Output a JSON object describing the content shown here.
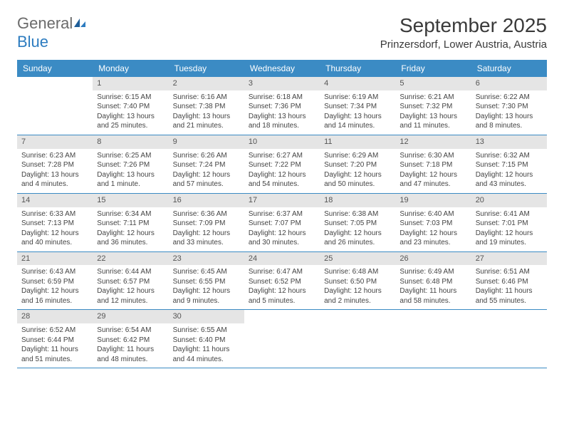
{
  "logo": {
    "word1": "General",
    "word2": "Blue"
  },
  "title": "September 2025",
  "location": "Prinzersdorf, Lower Austria, Austria",
  "colors": {
    "header_bg": "#3b8bc4",
    "header_text": "#ffffff",
    "daynum_bg": "#e5e5e5",
    "border": "#3b8bc4",
    "body_text": "#444444",
    "logo_gray": "#6b6b6b",
    "logo_blue": "#2d7cc0"
  },
  "day_headers": [
    "Sunday",
    "Monday",
    "Tuesday",
    "Wednesday",
    "Thursday",
    "Friday",
    "Saturday"
  ],
  "weeks": [
    [
      {
        "num": "",
        "sunrise": "",
        "sunset": "",
        "daylight1": "",
        "daylight2": ""
      },
      {
        "num": "1",
        "sunrise": "Sunrise: 6:15 AM",
        "sunset": "Sunset: 7:40 PM",
        "daylight1": "Daylight: 13 hours",
        "daylight2": "and 25 minutes."
      },
      {
        "num": "2",
        "sunrise": "Sunrise: 6:16 AM",
        "sunset": "Sunset: 7:38 PM",
        "daylight1": "Daylight: 13 hours",
        "daylight2": "and 21 minutes."
      },
      {
        "num": "3",
        "sunrise": "Sunrise: 6:18 AM",
        "sunset": "Sunset: 7:36 PM",
        "daylight1": "Daylight: 13 hours",
        "daylight2": "and 18 minutes."
      },
      {
        "num": "4",
        "sunrise": "Sunrise: 6:19 AM",
        "sunset": "Sunset: 7:34 PM",
        "daylight1": "Daylight: 13 hours",
        "daylight2": "and 14 minutes."
      },
      {
        "num": "5",
        "sunrise": "Sunrise: 6:21 AM",
        "sunset": "Sunset: 7:32 PM",
        "daylight1": "Daylight: 13 hours",
        "daylight2": "and 11 minutes."
      },
      {
        "num": "6",
        "sunrise": "Sunrise: 6:22 AM",
        "sunset": "Sunset: 7:30 PM",
        "daylight1": "Daylight: 13 hours",
        "daylight2": "and 8 minutes."
      }
    ],
    [
      {
        "num": "7",
        "sunrise": "Sunrise: 6:23 AM",
        "sunset": "Sunset: 7:28 PM",
        "daylight1": "Daylight: 13 hours",
        "daylight2": "and 4 minutes."
      },
      {
        "num": "8",
        "sunrise": "Sunrise: 6:25 AM",
        "sunset": "Sunset: 7:26 PM",
        "daylight1": "Daylight: 13 hours",
        "daylight2": "and 1 minute."
      },
      {
        "num": "9",
        "sunrise": "Sunrise: 6:26 AM",
        "sunset": "Sunset: 7:24 PM",
        "daylight1": "Daylight: 12 hours",
        "daylight2": "and 57 minutes."
      },
      {
        "num": "10",
        "sunrise": "Sunrise: 6:27 AM",
        "sunset": "Sunset: 7:22 PM",
        "daylight1": "Daylight: 12 hours",
        "daylight2": "and 54 minutes."
      },
      {
        "num": "11",
        "sunrise": "Sunrise: 6:29 AM",
        "sunset": "Sunset: 7:20 PM",
        "daylight1": "Daylight: 12 hours",
        "daylight2": "and 50 minutes."
      },
      {
        "num": "12",
        "sunrise": "Sunrise: 6:30 AM",
        "sunset": "Sunset: 7:18 PM",
        "daylight1": "Daylight: 12 hours",
        "daylight2": "and 47 minutes."
      },
      {
        "num": "13",
        "sunrise": "Sunrise: 6:32 AM",
        "sunset": "Sunset: 7:15 PM",
        "daylight1": "Daylight: 12 hours",
        "daylight2": "and 43 minutes."
      }
    ],
    [
      {
        "num": "14",
        "sunrise": "Sunrise: 6:33 AM",
        "sunset": "Sunset: 7:13 PM",
        "daylight1": "Daylight: 12 hours",
        "daylight2": "and 40 minutes."
      },
      {
        "num": "15",
        "sunrise": "Sunrise: 6:34 AM",
        "sunset": "Sunset: 7:11 PM",
        "daylight1": "Daylight: 12 hours",
        "daylight2": "and 36 minutes."
      },
      {
        "num": "16",
        "sunrise": "Sunrise: 6:36 AM",
        "sunset": "Sunset: 7:09 PM",
        "daylight1": "Daylight: 12 hours",
        "daylight2": "and 33 minutes."
      },
      {
        "num": "17",
        "sunrise": "Sunrise: 6:37 AM",
        "sunset": "Sunset: 7:07 PM",
        "daylight1": "Daylight: 12 hours",
        "daylight2": "and 30 minutes."
      },
      {
        "num": "18",
        "sunrise": "Sunrise: 6:38 AM",
        "sunset": "Sunset: 7:05 PM",
        "daylight1": "Daylight: 12 hours",
        "daylight2": "and 26 minutes."
      },
      {
        "num": "19",
        "sunrise": "Sunrise: 6:40 AM",
        "sunset": "Sunset: 7:03 PM",
        "daylight1": "Daylight: 12 hours",
        "daylight2": "and 23 minutes."
      },
      {
        "num": "20",
        "sunrise": "Sunrise: 6:41 AM",
        "sunset": "Sunset: 7:01 PM",
        "daylight1": "Daylight: 12 hours",
        "daylight2": "and 19 minutes."
      }
    ],
    [
      {
        "num": "21",
        "sunrise": "Sunrise: 6:43 AM",
        "sunset": "Sunset: 6:59 PM",
        "daylight1": "Daylight: 12 hours",
        "daylight2": "and 16 minutes."
      },
      {
        "num": "22",
        "sunrise": "Sunrise: 6:44 AM",
        "sunset": "Sunset: 6:57 PM",
        "daylight1": "Daylight: 12 hours",
        "daylight2": "and 12 minutes."
      },
      {
        "num": "23",
        "sunrise": "Sunrise: 6:45 AM",
        "sunset": "Sunset: 6:55 PM",
        "daylight1": "Daylight: 12 hours",
        "daylight2": "and 9 minutes."
      },
      {
        "num": "24",
        "sunrise": "Sunrise: 6:47 AM",
        "sunset": "Sunset: 6:52 PM",
        "daylight1": "Daylight: 12 hours",
        "daylight2": "and 5 minutes."
      },
      {
        "num": "25",
        "sunrise": "Sunrise: 6:48 AM",
        "sunset": "Sunset: 6:50 PM",
        "daylight1": "Daylight: 12 hours",
        "daylight2": "and 2 minutes."
      },
      {
        "num": "26",
        "sunrise": "Sunrise: 6:49 AM",
        "sunset": "Sunset: 6:48 PM",
        "daylight1": "Daylight: 11 hours",
        "daylight2": "and 58 minutes."
      },
      {
        "num": "27",
        "sunrise": "Sunrise: 6:51 AM",
        "sunset": "Sunset: 6:46 PM",
        "daylight1": "Daylight: 11 hours",
        "daylight2": "and 55 minutes."
      }
    ],
    [
      {
        "num": "28",
        "sunrise": "Sunrise: 6:52 AM",
        "sunset": "Sunset: 6:44 PM",
        "daylight1": "Daylight: 11 hours",
        "daylight2": "and 51 minutes."
      },
      {
        "num": "29",
        "sunrise": "Sunrise: 6:54 AM",
        "sunset": "Sunset: 6:42 PM",
        "daylight1": "Daylight: 11 hours",
        "daylight2": "and 48 minutes."
      },
      {
        "num": "30",
        "sunrise": "Sunrise: 6:55 AM",
        "sunset": "Sunset: 6:40 PM",
        "daylight1": "Daylight: 11 hours",
        "daylight2": "and 44 minutes."
      },
      {
        "num": "",
        "sunrise": "",
        "sunset": "",
        "daylight1": "",
        "daylight2": ""
      },
      {
        "num": "",
        "sunrise": "",
        "sunset": "",
        "daylight1": "",
        "daylight2": ""
      },
      {
        "num": "",
        "sunrise": "",
        "sunset": "",
        "daylight1": "",
        "daylight2": ""
      },
      {
        "num": "",
        "sunrise": "",
        "sunset": "",
        "daylight1": "",
        "daylight2": ""
      }
    ]
  ]
}
